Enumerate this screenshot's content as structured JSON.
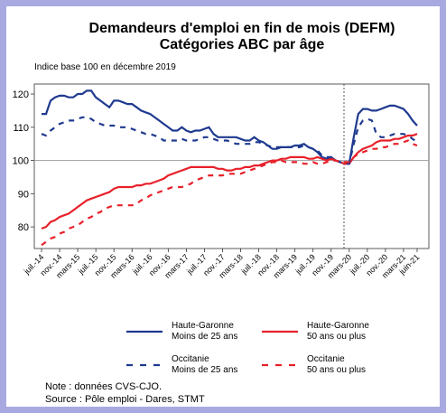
{
  "chart_data": {
    "type": "line",
    "title": "Demandeurs d'emploi en fin de mois (DEFM)",
    "subtitle": "Catégories ABC par âge",
    "axis_note": "Indice base 100 en décembre 2019",
    "categories": [
      "juil.-14",
      null,
      null,
      null,
      "nov.-14",
      null,
      null,
      null,
      "mars-15",
      null,
      null,
      null,
      "juil.-15",
      null,
      null,
      null,
      "nov.-15",
      null,
      null,
      null,
      "mars-16",
      null,
      null,
      null,
      "juil.-16",
      null,
      null,
      null,
      "nov.-16",
      null,
      null,
      null,
      "mars-17",
      null,
      null,
      null,
      "juil.-17",
      null,
      null,
      null,
      "nov.-17",
      null,
      null,
      null,
      "mars-18",
      null,
      null,
      null,
      "juil.-18",
      null,
      null,
      null,
      "nov.-18",
      null,
      null,
      null,
      "mars-19",
      null,
      null,
      null,
      "juil.-19",
      null,
      null,
      null,
      "nov.-19",
      null,
      null,
      null,
      "mars-20",
      null,
      null,
      null,
      "juil.-20",
      null,
      null,
      null,
      "nov.-20",
      null,
      null,
      null,
      "mars-21",
      null,
      null,
      "juin-21"
    ],
    "series": [
      {
        "name": "Haute-Garonne\nMoins de 25 ans",
        "color": "#1f3a8f",
        "dashed": false,
        "values": [
          114,
          114,
          118,
          119,
          119.5,
          119.5,
          119,
          119,
          120,
          120,
          121,
          121,
          119,
          118,
          117,
          116,
          118,
          118,
          117.5,
          117,
          117,
          116,
          115,
          114.5,
          114,
          113,
          112,
          111,
          110,
          109,
          109,
          110,
          109,
          108.5,
          109,
          109,
          109.5,
          110,
          108,
          107,
          107,
          107,
          107,
          107,
          106.5,
          106,
          106,
          107,
          106,
          105.5,
          104.5,
          103.5,
          103.5,
          104,
          104,
          104,
          104.5,
          104.5,
          105,
          104,
          103.5,
          102.5,
          101,
          100.5,
          101,
          100,
          99.5,
          99,
          99,
          107,
          114,
          115.5,
          115.5,
          115,
          115,
          115.5,
          116,
          116.5,
          116.5,
          116,
          115.5,
          114,
          112,
          110.5
        ]
      },
      {
        "name": "Haute-Garonne\n50 ans ou plus",
        "color": "#e8202a",
        "dashed": false,
        "values": [
          79.5,
          80,
          81.5,
          82,
          83,
          83.5,
          84,
          85,
          86,
          87,
          88,
          88.5,
          89,
          89.5,
          90,
          90.5,
          91.5,
          92,
          92,
          92,
          92,
          92.5,
          92.5,
          93,
          93,
          93.5,
          94,
          94.5,
          95.5,
          96,
          96.5,
          97,
          97.5,
          98,
          98,
          98,
          98,
          98,
          98,
          97.5,
          97.5,
          97,
          97,
          97.5,
          97.5,
          98,
          98,
          98.5,
          98.5,
          99,
          99.5,
          100,
          100,
          100.5,
          100.5,
          101,
          101,
          101,
          101,
          100.5,
          100.5,
          101,
          100.5,
          100,
          100.5,
          100,
          99.5,
          99,
          99,
          101,
          102.5,
          103.5,
          104,
          104.5,
          105.5,
          106,
          106,
          106,
          106.5,
          106.5,
          107,
          107.5,
          107.5,
          108
        ]
      },
      {
        "name": "Occitanie\nMoins de 25 ans",
        "color": "#1f3a8f",
        "dashed": true,
        "values": [
          108,
          107.5,
          109,
          110,
          111,
          111.5,
          112,
          112,
          112.5,
          113,
          113,
          112.5,
          111.5,
          111,
          110.5,
          110.5,
          110.5,
          110,
          110,
          110,
          109.5,
          109,
          108.5,
          108,
          108,
          107.5,
          107,
          106,
          106,
          106,
          106,
          106.5,
          106,
          106,
          106,
          106.5,
          107,
          107,
          106.5,
          106,
          106,
          106,
          105.5,
          105,
          105,
          105,
          105,
          105.5,
          105.5,
          105,
          104.5,
          104,
          104,
          104,
          104,
          104,
          104,
          104,
          104.5,
          104,
          103.5,
          103,
          101.5,
          101,
          101,
          100,
          99.5,
          99,
          99,
          105,
          110,
          112,
          112.5,
          112,
          108,
          107,
          107,
          107.5,
          108,
          108,
          108,
          107.5,
          106.5,
          105.5
        ]
      },
      {
        "name": "Occitanie\n50 ans ou plus",
        "color": "#e8202a",
        "dashed": true,
        "values": [
          74.5,
          75.5,
          76.5,
          77,
          78,
          78.5,
          79.5,
          80,
          80.5,
          81.5,
          82.5,
          83,
          84,
          84.5,
          85.5,
          86,
          86.5,
          86.5,
          86.5,
          86.5,
          86.5,
          87,
          88,
          88.5,
          89.5,
          90,
          90.5,
          91,
          91.5,
          92,
          92,
          92,
          92.5,
          93,
          94,
          94.5,
          95,
          95.5,
          95.5,
          95.5,
          95.5,
          96,
          96,
          96,
          96,
          96.5,
          97,
          97.5,
          98,
          98.5,
          99,
          99.5,
          99.5,
          100,
          99.5,
          99.5,
          99.5,
          99.5,
          99,
          99,
          99.5,
          99,
          99,
          99.5,
          100,
          100,
          99.5,
          99.5,
          99.5,
          101,
          102,
          102.5,
          103,
          103.5,
          103.5,
          104,
          104,
          104.5,
          105,
          105,
          105.5,
          106,
          105,
          104.5
        ]
      }
    ],
    "ylim": [
      73.5,
      123
    ],
    "yticks": [
      80,
      90,
      100,
      110,
      120
    ],
    "note": "Note : données CVS-CJO.",
    "source": "Source : Pôle emploi - Dares, STMT"
  }
}
